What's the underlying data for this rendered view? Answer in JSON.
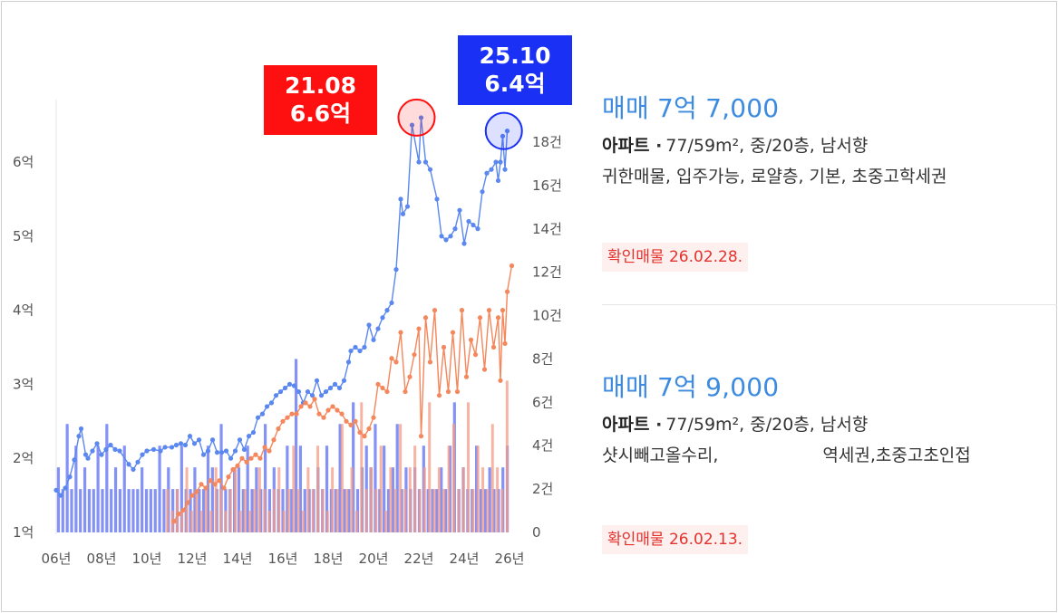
{
  "chart_data": {
    "type": "line",
    "x_range": [
      2006,
      2026
    ],
    "x_ticks": [
      "06년",
      "08년",
      "10년",
      "12년",
      "14년",
      "16년",
      "18년",
      "20년",
      "22년",
      "24년",
      "26년"
    ],
    "y_left_range": [
      1,
      6.5
    ],
    "y_left_ticks": [
      "1억",
      "2억",
      "3억",
      "4억",
      "5억",
      "6억"
    ],
    "y_right_range": [
      0,
      19
    ],
    "y_right_ticks": [
      "0",
      "2건",
      "4건",
      "6건",
      "8건",
      "10건",
      "12건",
      "14건",
      "16건",
      "18건"
    ],
    "grid": false,
    "legend": "none",
    "colors": {
      "series_1": "#5b87f0",
      "series_2": "#f4875c",
      "bars_1": "#6f7ff5",
      "bars_2": "#f49b86",
      "highlight_red": "#ff1010",
      "highlight_blue": "#1a30f5"
    },
    "series": [
      {
        "values": [
          [
            2006.0,
            1.57
          ],
          [
            2006.2,
            1.5
          ],
          [
            2006.4,
            1.6
          ],
          [
            2006.6,
            1.75
          ],
          [
            2006.8,
            1.98
          ],
          [
            2007.0,
            2.3
          ],
          [
            2007.1,
            2.4
          ],
          [
            2007.3,
            2.05
          ],
          [
            2007.4,
            2.0
          ],
          [
            2007.6,
            2.1
          ],
          [
            2007.8,
            2.2
          ],
          [
            2008.0,
            2.05
          ],
          [
            2008.2,
            2.12
          ],
          [
            2008.4,
            2.18
          ],
          [
            2008.6,
            2.12
          ],
          [
            2008.8,
            2.1
          ],
          [
            2009.2,
            1.92
          ],
          [
            2009.4,
            1.85
          ],
          [
            2009.6,
            1.95
          ],
          [
            2009.8,
            2.05
          ],
          [
            2010.0,
            2.1
          ],
          [
            2010.3,
            2.12
          ],
          [
            2010.6,
            2.1
          ],
          [
            2010.8,
            2.15
          ],
          [
            2011.1,
            2.15
          ],
          [
            2011.3,
            2.18
          ],
          [
            2011.5,
            2.2
          ],
          [
            2011.7,
            2.18
          ],
          [
            2011.9,
            2.3
          ],
          [
            2012.1,
            2.2
          ],
          [
            2012.3,
            2.25
          ],
          [
            2012.5,
            2.05
          ],
          [
            2012.7,
            2.1
          ],
          [
            2012.9,
            2.25
          ],
          [
            2013.1,
            2.08
          ],
          [
            2013.3,
            2.08
          ],
          [
            2013.5,
            2.1
          ],
          [
            2013.7,
            2.0
          ],
          [
            2013.9,
            2.1
          ],
          [
            2014.1,
            2.25
          ],
          [
            2014.3,
            2.12
          ],
          [
            2014.5,
            2.3
          ],
          [
            2014.7,
            2.35
          ],
          [
            2014.9,
            2.55
          ],
          [
            2015.1,
            2.6
          ],
          [
            2015.3,
            2.7
          ],
          [
            2015.5,
            2.75
          ],
          [
            2015.7,
            2.85
          ],
          [
            2015.9,
            2.9
          ],
          [
            2016.1,
            2.95
          ],
          [
            2016.3,
            3.0
          ],
          [
            2016.5,
            2.98
          ],
          [
            2016.7,
            2.9
          ],
          [
            2016.9,
            2.75
          ],
          [
            2017.1,
            2.9
          ],
          [
            2017.3,
            2.85
          ],
          [
            2017.5,
            3.05
          ],
          [
            2017.7,
            2.85
          ],
          [
            2017.9,
            2.9
          ],
          [
            2018.1,
            2.95
          ],
          [
            2018.3,
            3.0
          ],
          [
            2018.5,
            2.95
          ],
          [
            2018.7,
            3.05
          ],
          [
            2018.9,
            3.3
          ],
          [
            2019.0,
            3.45
          ],
          [
            2019.2,
            3.5
          ],
          [
            2019.4,
            3.45
          ],
          [
            2019.6,
            3.5
          ],
          [
            2019.8,
            3.8
          ],
          [
            2020.0,
            3.6
          ],
          [
            2020.2,
            3.75
          ],
          [
            2020.4,
            3.9
          ],
          [
            2020.6,
            4.0
          ],
          [
            2020.8,
            4.1
          ],
          [
            2021.0,
            4.55
          ],
          [
            2021.2,
            5.5
          ],
          [
            2021.3,
            5.3
          ],
          [
            2021.5,
            5.4
          ],
          [
            2021.7,
            6.5
          ],
          [
            2022.0,
            6.0
          ],
          [
            2022.1,
            6.6
          ],
          [
            2022.3,
            6.0
          ],
          [
            2022.5,
            5.9
          ],
          [
            2022.8,
            5.5
          ],
          [
            2023.0,
            5.0
          ],
          [
            2023.2,
            4.95
          ],
          [
            2023.4,
            5.0
          ],
          [
            2023.6,
            5.1
          ],
          [
            2023.8,
            5.35
          ],
          [
            2024.0,
            4.9
          ],
          [
            2024.2,
            5.2
          ],
          [
            2024.4,
            5.15
          ],
          [
            2024.6,
            5.1
          ],
          [
            2024.8,
            5.6
          ],
          [
            2025.0,
            5.85
          ],
          [
            2025.2,
            5.9
          ],
          [
            2025.4,
            6.0
          ],
          [
            2025.5,
            5.75
          ],
          [
            2025.6,
            6.0
          ],
          [
            2025.7,
            6.35
          ],
          [
            2025.8,
            5.9
          ],
          [
            2025.9,
            6.42
          ]
        ]
      },
      {
        "values": [
          [
            2011.2,
            1.15
          ],
          [
            2011.4,
            1.25
          ],
          [
            2011.6,
            1.3
          ],
          [
            2011.8,
            1.4
          ],
          [
            2012.0,
            1.5
          ],
          [
            2012.2,
            1.55
          ],
          [
            2012.4,
            1.65
          ],
          [
            2012.6,
            1.6
          ],
          [
            2012.8,
            1.7
          ],
          [
            2013.0,
            1.65
          ],
          [
            2013.2,
            1.7
          ],
          [
            2013.4,
            1.6
          ],
          [
            2013.6,
            1.75
          ],
          [
            2013.8,
            1.85
          ],
          [
            2014.0,
            1.9
          ],
          [
            2014.2,
            2.0
          ],
          [
            2014.4,
            1.95
          ],
          [
            2014.6,
            2.0
          ],
          [
            2014.8,
            2.05
          ],
          [
            2015.0,
            2.0
          ],
          [
            2015.2,
            2.15
          ],
          [
            2015.4,
            2.1
          ],
          [
            2015.6,
            2.25
          ],
          [
            2015.8,
            2.4
          ],
          [
            2016.0,
            2.5
          ],
          [
            2016.2,
            2.55
          ],
          [
            2016.4,
            2.6
          ],
          [
            2016.6,
            2.6
          ],
          [
            2016.8,
            2.7
          ],
          [
            2017.0,
            2.75
          ],
          [
            2017.2,
            2.7
          ],
          [
            2017.4,
            2.8
          ],
          [
            2017.6,
            2.6
          ],
          [
            2017.8,
            2.55
          ],
          [
            2018.0,
            2.65
          ],
          [
            2018.2,
            2.7
          ],
          [
            2018.4,
            2.65
          ],
          [
            2018.6,
            2.6
          ],
          [
            2018.8,
            2.5
          ],
          [
            2019.0,
            2.45
          ],
          [
            2019.2,
            2.5
          ],
          [
            2019.4,
            2.35
          ],
          [
            2019.6,
            2.3
          ],
          [
            2019.8,
            2.4
          ],
          [
            2020.0,
            2.55
          ],
          [
            2020.2,
            3.0
          ],
          [
            2020.4,
            2.95
          ],
          [
            2020.6,
            2.9
          ],
          [
            2020.8,
            3.35
          ],
          [
            2021.0,
            3.3
          ],
          [
            2021.2,
            3.7
          ],
          [
            2021.4,
            2.9
          ],
          [
            2021.6,
            3.1
          ],
          [
            2021.8,
            3.4
          ],
          [
            2022.0,
            3.75
          ],
          [
            2022.1,
            2.3
          ],
          [
            2022.3,
            3.9
          ],
          [
            2022.5,
            3.3
          ],
          [
            2022.7,
            4.0
          ],
          [
            2022.9,
            2.85
          ],
          [
            2023.1,
            3.5
          ],
          [
            2023.3,
            2.9
          ],
          [
            2023.5,
            3.7
          ],
          [
            2023.7,
            2.9
          ],
          [
            2023.9,
            4.0
          ],
          [
            2024.1,
            3.1
          ],
          [
            2024.3,
            3.6
          ],
          [
            2024.5,
            3.4
          ],
          [
            2024.7,
            3.9
          ],
          [
            2024.9,
            3.2
          ],
          [
            2025.1,
            4.0
          ],
          [
            2025.3,
            3.5
          ],
          [
            2025.5,
            3.9
          ],
          [
            2025.6,
            3.05
          ],
          [
            2025.7,
            4.0
          ],
          [
            2025.8,
            3.55
          ],
          [
            2025.9,
            4.25
          ],
          [
            2026.1,
            4.6
          ]
        ]
      }
    ],
    "volume_bars_1": [
      3,
      2,
      5,
      2,
      4,
      2,
      3,
      2,
      2,
      4,
      2,
      5,
      2,
      3,
      2,
      4,
      2,
      2,
      2,
      3,
      2,
      2,
      2,
      4,
      2,
      3,
      2,
      2,
      4,
      2,
      2,
      3,
      2,
      2,
      4,
      3,
      2,
      5,
      2,
      2,
      3,
      3,
      2,
      4,
      2,
      3,
      2,
      5,
      2,
      3,
      2,
      2,
      4,
      2,
      8,
      4,
      2,
      2,
      2,
      3,
      2,
      4,
      2,
      2,
      5,
      2,
      2,
      6,
      2,
      3,
      4,
      3,
      5,
      2,
      4,
      2,
      3,
      5,
      2,
      3,
      2,
      3,
      2,
      4,
      2,
      2,
      2,
      3,
      2,
      4,
      6,
      2,
      3,
      2,
      2,
      4,
      2,
      2,
      3,
      2,
      2,
      3,
      4
    ],
    "volume_bars_2": [
      2,
      1,
      2,
      1,
      3,
      1,
      2,
      1,
      2,
      1,
      3,
      2,
      1,
      2,
      3,
      1,
      2,
      1,
      2,
      3,
      2,
      1,
      2,
      3,
      1,
      2,
      4,
      2,
      1,
      3,
      2,
      4,
      2,
      1,
      3,
      2,
      5,
      2,
      3,
      1,
      6,
      2,
      3,
      2,
      4,
      1,
      3,
      2,
      5,
      2,
      3,
      4,
      2,
      3,
      6,
      2,
      3,
      2,
      4,
      5,
      2,
      3,
      6,
      2,
      4,
      3,
      2,
      5,
      3,
      2,
      7
    ],
    "highlights": [
      {
        "label_date": "21.08",
        "label_price": "6.6억",
        "x": 2021.9,
        "y": 6.6,
        "color": "red"
      },
      {
        "label_date": "25.10",
        "label_price": "6.4억",
        "x": 2025.75,
        "y": 6.42,
        "color": "blue"
      }
    ]
  },
  "listings": [
    {
      "price": "매매 7억 7,000",
      "type": "아파트",
      "specs": "77/59m², 중/20층, 남서향",
      "tags": "귀한매물, 입주가능, 로얄층, 기본, 초중고학세권",
      "tags_tail": "",
      "badge": "확인매물 26.02.28."
    },
    {
      "price": "매매 7억 9,000",
      "type": "아파트",
      "specs": "77/59m², 중/20층, 남서향",
      "tags": "샷시빼고올수리,",
      "tags_tail": "역세권,초중고초인접",
      "badge": "확인매물 26.02.13."
    }
  ]
}
